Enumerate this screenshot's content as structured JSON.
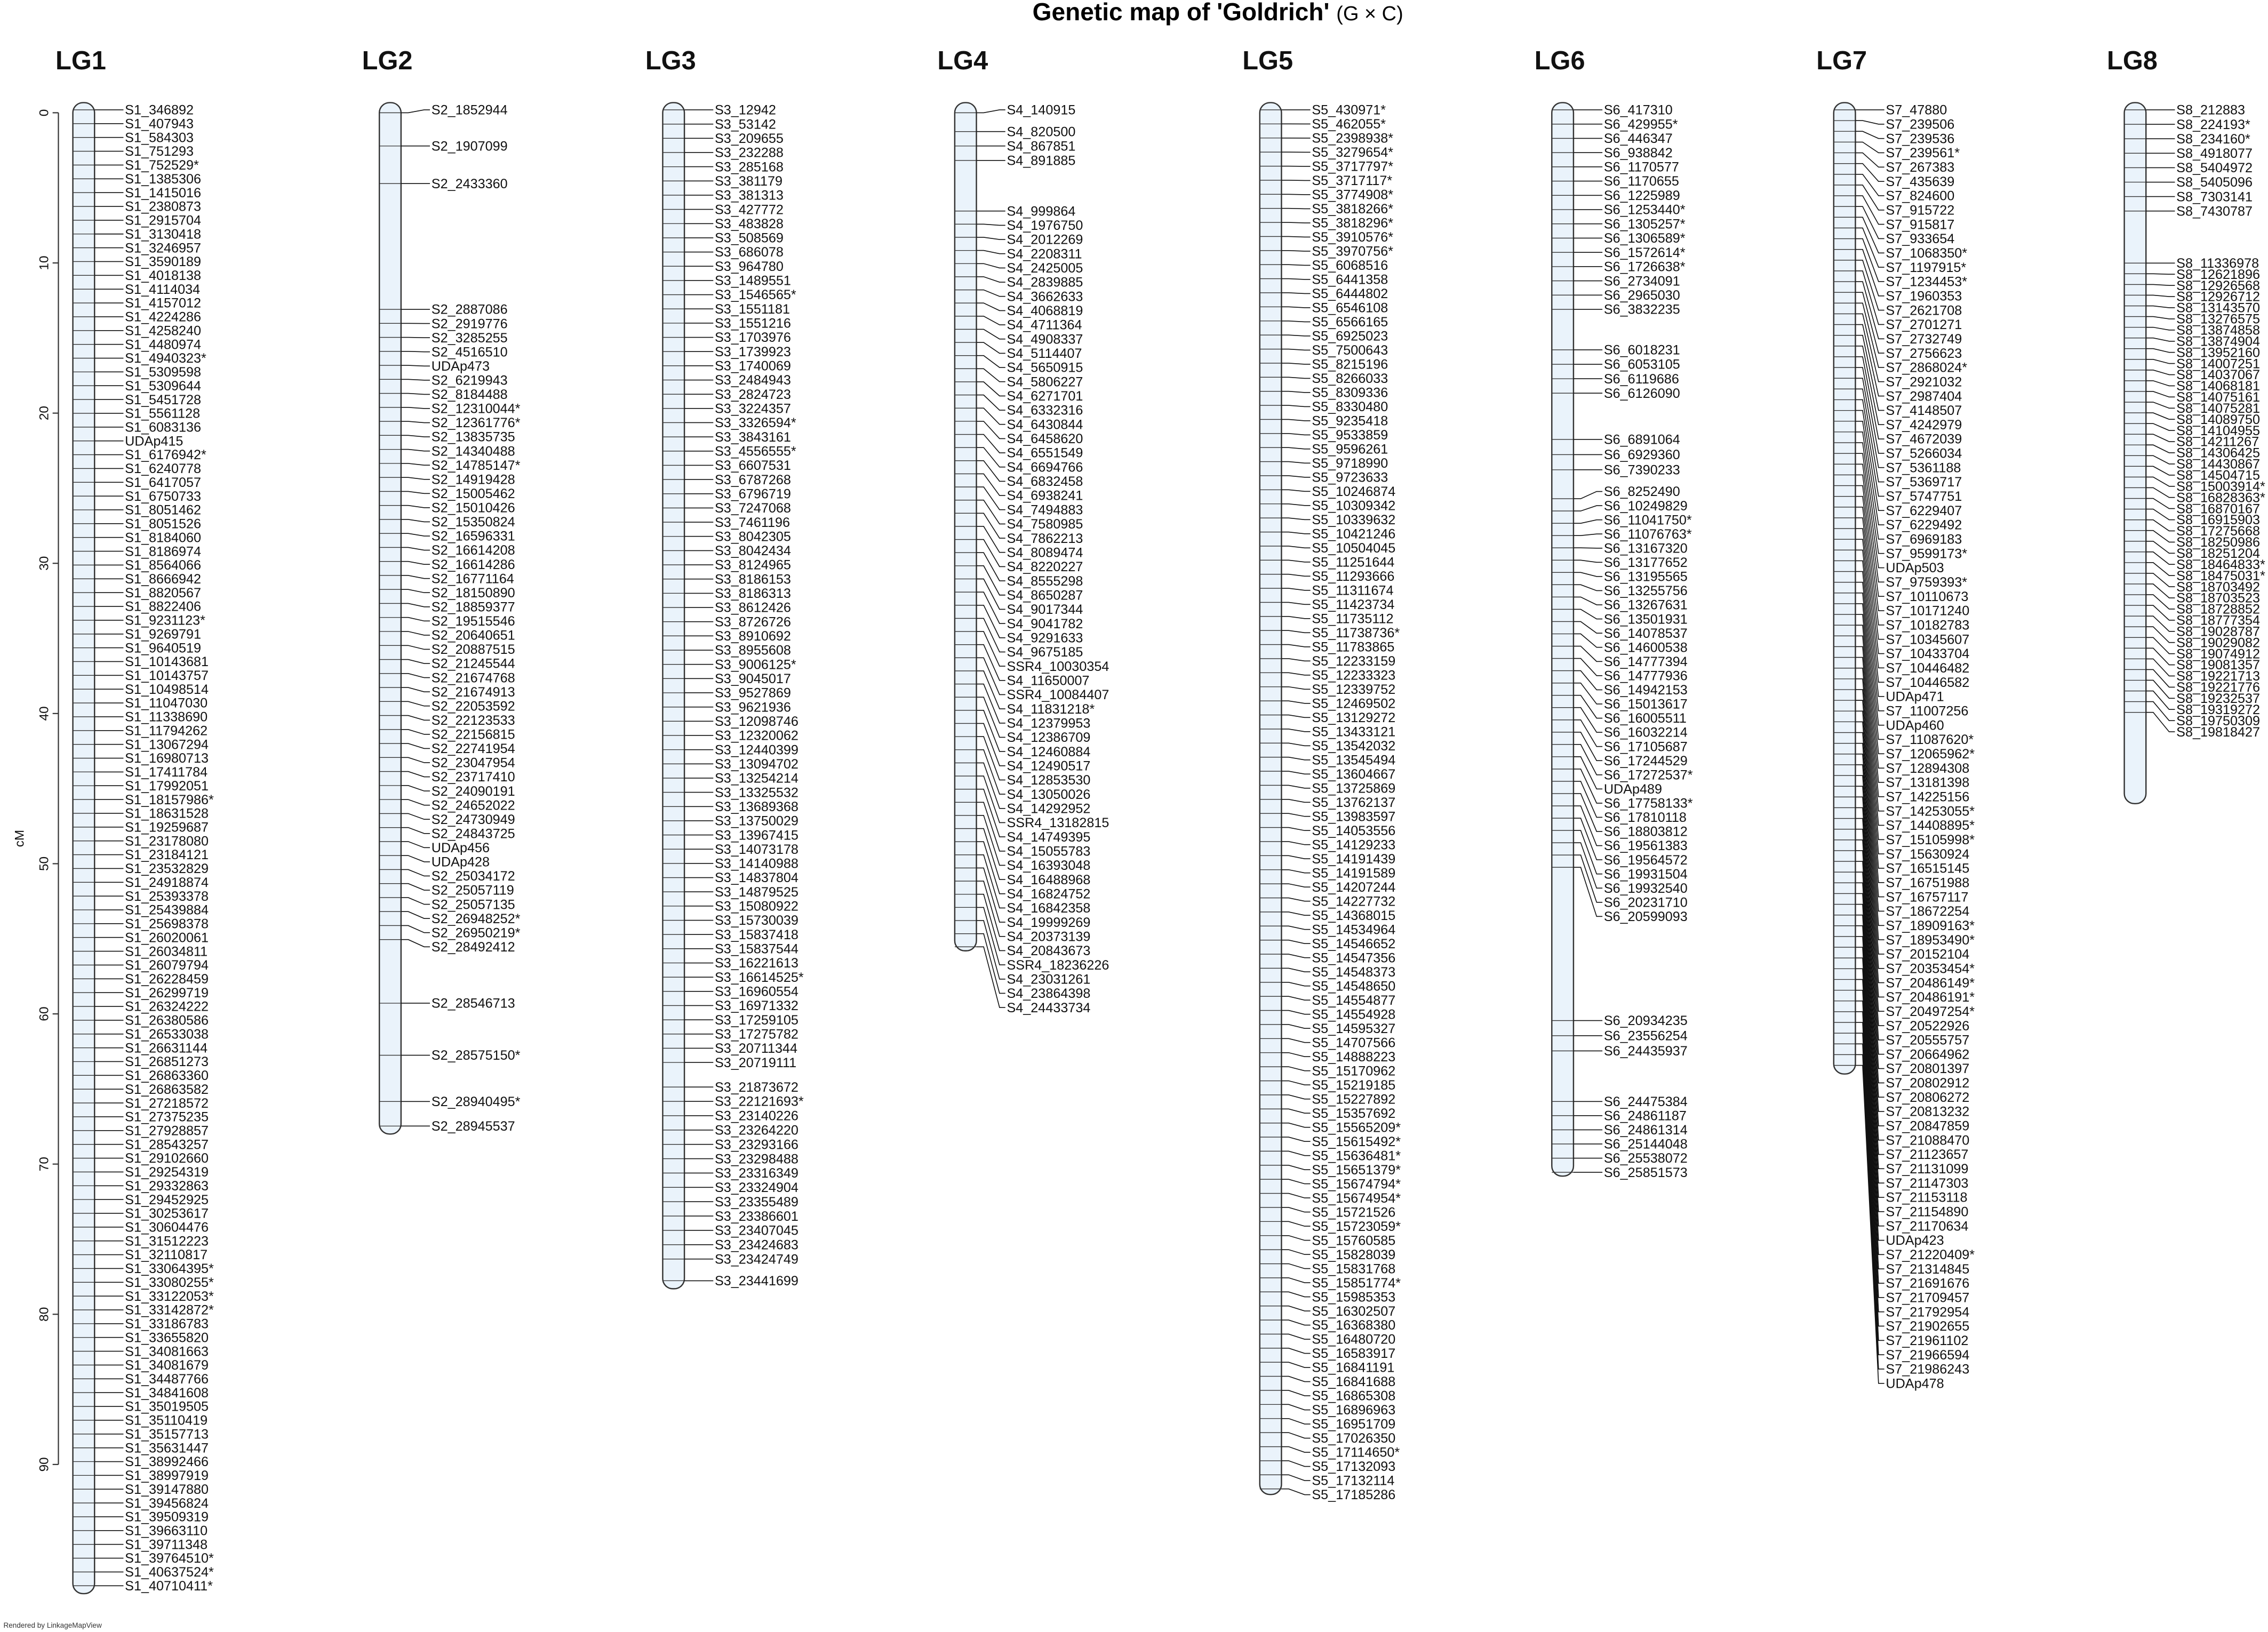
{
  "title": "Genetic map of 'Goldrich'",
  "title_suffix": "(G × C)",
  "y_axis_label": "cM",
  "y_ticks": [
    0,
    10,
    20,
    30,
    40,
    50,
    60,
    70,
    80,
    90
  ],
  "footer": "Rendered by LinkageMapView",
  "colors": {
    "chromosome_fill": "#eaf3fb",
    "outline": "#333333"
  },
  "linkage_groups": [
    {
      "name": "LG1",
      "length_cM": 98.6,
      "markers": [
        "S1_346892",
        "S1_407943",
        "S1_584303",
        "S1_751293",
        "S1_752529*",
        "S1_1385306",
        "S1_1415016",
        "S1_2380873",
        "S1_2915704",
        "S1_3130418",
        "S1_3246957",
        "S1_3590189",
        "S1_4018138",
        "S1_4114034",
        "S1_4157012",
        "S1_4224286",
        "S1_4258240",
        "S1_4480974",
        "S1_4940323*",
        "S1_5309598",
        "S1_5309644",
        "S1_5451728",
        "S1_5561128",
        "S1_6083136",
        "UDAp415",
        "S1_6176942*",
        "S1_6240778",
        "S1_6417057",
        "S1_6750733",
        "S1_8051462",
        "S1_8051526",
        "S1_8184060",
        "S1_8186974",
        "S1_8564066",
        "S1_8666942",
        "S1_8820567",
        "S1_8822406",
        "S1_9231123*",
        "S1_9269791",
        "S1_9640519",
        "S1_10143681",
        "S1_10143757",
        "S1_10498514",
        "S1_11047030",
        "S1_11338690",
        "S1_11794262",
        "S1_13067294",
        "S1_16980713",
        "S1_17411784",
        "S1_17992051",
        "S1_18157986*",
        "S1_18631528",
        "S1_19259687",
        "S1_23178080",
        "S1_23184121",
        "S1_23532829",
        "S1_24918874",
        "S1_25393378",
        "S1_25439884",
        "S1_25698378",
        "S1_26020061",
        "S1_26034811",
        "S1_26079794",
        "S1_26228459",
        "S1_26299719",
        "S1_26324222",
        "S1_26380586",
        "S1_26533038",
        "S1_26631144",
        "S1_26851273",
        "S1_26863360",
        "S1_26863582",
        "S1_27218572",
        "S1_27375235",
        "S1_27928857",
        "S1_28543257",
        "S1_29102660",
        "S1_29254319",
        "S1_29332863",
        "S1_29452925",
        "S1_30253617",
        "S1_30604476",
        "S1_31512223",
        "S1_32110817",
        "S1_33064395*",
        "S1_33080255*",
        "S1_33122053*",
        "S1_33142872*",
        "S1_33186783",
        "S1_33655820",
        "S1_34081663",
        "S1_34081679",
        "S1_34487766",
        "S1_34841608",
        "S1_35019505",
        "S1_35110419",
        "S1_35157713",
        "S1_35631447",
        "S1_38992466",
        "S1_38997919",
        "S1_39147880",
        "S1_39456824",
        "S1_39509319",
        "S1_39663110",
        "S1_39711348",
        "S1_39764510*",
        "S1_40637524*",
        "S1_40710411*"
      ]
    },
    {
      "name": "LG2",
      "length_cM": 68,
      "markers": [
        "S2_1852944",
        "S2_1907099",
        "S2_2433360",
        "S2_2887086",
        "S2_2919776",
        "S2_3285255",
        "S2_4516510",
        "UDAp473",
        "S2_6219943",
        "S2_8184488",
        "S2_12310044*",
        "S2_12361776*",
        "S2_13835735",
        "S2_14340488",
        "S2_14785147*",
        "S2_14919428",
        "S2_15005462",
        "S2_15010426",
        "S2_15350824",
        "S2_16596331",
        "S2_16614208",
        "S2_16614286",
        "S2_16771164",
        "S2_18150890",
        "S2_18859377",
        "S2_19515546",
        "S2_20640651",
        "S2_20887515",
        "S2_21245544",
        "S2_21674768",
        "S2_21674913",
        "S2_22053592",
        "S2_22123533",
        "S2_22156815",
        "S2_22741954",
        "S2_23047954",
        "S2_23717410",
        "S2_24090191",
        "S2_24652022",
        "S2_24730949",
        "S2_24843725",
        "UDAp456",
        "UDAp428",
        "S2_25034172",
        "S2_25057119",
        "S2_25057135",
        "S2_26948252*",
        "S2_26950219*",
        "S2_28492412",
        "S2_28546713",
        "S2_28575150*",
        "S2_28940495*",
        "S2_28945537"
      ]
    },
    {
      "name": "LG3",
      "length_cM": 78.3,
      "markers": [
        "S3_12942",
        "S3_53142",
        "S3_209655",
        "S3_232288",
        "S3_285168",
        "S3_381179",
        "S3_381313",
        "S3_427772",
        "S3_483828",
        "S3_508569",
        "S3_686078",
        "S3_964780",
        "S3_1489551",
        "S3_1546565*",
        "S3_1551181",
        "S3_1551216",
        "S3_1703976",
        "S3_1739923",
        "S3_1740069",
        "S3_2484943",
        "S3_2824723",
        "S3_3224357",
        "S3_3326594*",
        "S3_3843161",
        "S3_4556555*",
        "S3_6607531",
        "S3_6787268",
        "S3_6796719",
        "S3_7247068",
        "S3_7461196",
        "S3_8042305",
        "S3_8042434",
        "S3_8124965",
        "S3_8186153",
        "S3_8186313",
        "S3_8612426",
        "S3_8726726",
        "S3_8910692",
        "S3_8955608",
        "S3_9006125*",
        "S3_9045017",
        "S3_9527869",
        "S3_9621936",
        "S3_12098746",
        "S3_12320062",
        "S3_12440399",
        "S3_13094702",
        "S3_13254214",
        "S3_13325532",
        "S3_13689368",
        "S3_13750029",
        "S3_13967415",
        "S3_14073178",
        "S3_14140988",
        "S3_14837804",
        "S3_14879525",
        "S3_15080922",
        "S3_15730039",
        "S3_15837418",
        "S3_15837544",
        "S3_16221613",
        "S3_16614525*",
        "S3_16960554",
        "S3_16971332",
        "S3_17259105",
        "S3_17275782",
        "S3_20711344",
        "S3_20719111",
        "S3_21873672",
        "S3_22121693*",
        "S3_23140226",
        "S3_23264220",
        "S3_23293166",
        "S3_23298488",
        "S3_23316349",
        "S3_23324904",
        "S3_23355489",
        "S3_23386601",
        "S3_23407045",
        "S3_23424683",
        "S3_23424749",
        "S3_23441699"
      ]
    },
    {
      "name": "LG4",
      "length_cM": 55.8,
      "markers": [
        "S4_140915",
        "S4_820500",
        "S4_867851",
        "S4_891885",
        "S4_999864",
        "S4_1976750",
        "S4_2012269",
        "S4_2208311",
        "S4_2425005",
        "S4_2839885",
        "S4_3662633",
        "S4_4068819",
        "S4_4711364",
        "S4_4908337",
        "S4_5114407",
        "S4_5650915",
        "S4_5806227",
        "S4_6271701",
        "S4_6332316",
        "S4_6430844",
        "S4_6458620",
        "S4_6551549",
        "S4_6694766",
        "S4_6832458",
        "S4_6938241",
        "S4_7494883",
        "S4_7580985",
        "S4_7862213",
        "S4_8089474",
        "S4_8220227",
        "S4_8555298",
        "S4_8650287",
        "S4_9017344",
        "S4_9041782",
        "S4_9291633",
        "S4_9675185",
        "SSR4_10030354",
        "S4_11650007",
        "SSR4_10084407",
        "S4_11831218*",
        "S4_12379953",
        "S4_12386709",
        "S4_12460884",
        "S4_12490517",
        "S4_12853530",
        "S4_13050026",
        "S4_14292952",
        "SSR4_13182815",
        "S4_14749395",
        "S4_15055783",
        "S4_16393048",
        "S4_16488968",
        "S4_16824752",
        "S4_16842358",
        "S4_19999269",
        "S4_20373139",
        "S4_20843673",
        "SSR4_18236226",
        "S4_23031261",
        "S4_23864398",
        "S4_24433734"
      ]
    },
    {
      "name": "LG5",
      "length_cM": 92,
      "markers": [
        "S5_430971*",
        "S5_462055*",
        "S5_2398938*",
        "S5_3279654*",
        "S5_3717797*",
        "S5_3717117*",
        "S5_3774908*",
        "S5_3818266*",
        "S5_3818296*",
        "S5_3910576*",
        "S5_3970756*",
        "S5_6068516",
        "S5_6441358",
        "S5_6444802",
        "S5_6546108",
        "S5_6566165",
        "S5_6925023",
        "S5_7500643",
        "S5_8215196",
        "S5_8266033",
        "S5_8309336",
        "S5_8330480",
        "S5_9235418",
        "S5_9533859",
        "S5_9596261",
        "S5_9718990",
        "S5_9723633",
        "S5_10246874",
        "S5_10309342",
        "S5_10339632",
        "S5_10421246",
        "S5_10504045",
        "S5_11251644",
        "S5_11293666",
        "S5_11311674",
        "S5_11423734",
        "S5_11735112",
        "S5_11738736*",
        "S5_11783865",
        "S5_12233159",
        "S5_12233323",
        "S5_12339752",
        "S5_12469502",
        "S5_13129272",
        "S5_13433121",
        "S5_13542032",
        "S5_13545494",
        "S5_13604667",
        "S5_13725869",
        "S5_13762137",
        "S5_13983597",
        "S5_14053556",
        "S5_14129233",
        "S5_14191439",
        "S5_14191589",
        "S5_14207244",
        "S5_14227732",
        "S5_14368015",
        "S5_14534964",
        "S5_14546652",
        "S5_14547356",
        "S5_14548373",
        "S5_14548650",
        "S5_14554877",
        "S5_14554928",
        "S5_14595327",
        "S5_14707566",
        "S5_14888223",
        "S5_15170962",
        "S5_15219185",
        "S5_15227892",
        "S5_15357692",
        "S5_15565209*",
        "S5_15615492*",
        "S5_15636481*",
        "S5_15651379*",
        "S5_15674794*",
        "S5_15674954*",
        "S5_15721526",
        "S5_15723059*",
        "S5_15760585",
        "S5_15828039",
        "S5_15831768",
        "S5_15851774*",
        "S5_15985353",
        "S5_16302507",
        "S5_16368380",
        "S5_16480720",
        "S5_16583917",
        "S5_16841191",
        "S5_16841688",
        "S5_16865308",
        "S5_16896963",
        "S5_16951709",
        "S5_17026350",
        "S5_17114650*",
        "S5_17132093",
        "S5_17132114",
        "S5_17185286"
      ]
    },
    {
      "name": "LG6",
      "length_cM": 70.8,
      "markers": [
        "S6_417310",
        "S6_429955*",
        "S6_446347",
        "S6_938842",
        "S6_1170577",
        "S6_1170655",
        "S6_1225989",
        "S6_1253440*",
        "S6_1305257*",
        "S6_1306589*",
        "S6_1572614*",
        "S6_1726638*",
        "S6_2734091",
        "S6_2965030",
        "S6_3832235",
        "S6_6018231",
        "S6_6053105",
        "S6_6119686",
        "S6_6126090",
        "S6_6891064",
        "S6_6929360",
        "S6_7390233",
        "S6_8252490",
        "S6_10249829",
        "S6_11041750*",
        "S6_11076763*",
        "S6_13167320",
        "S6_13177652",
        "S6_13195565",
        "S6_13255756",
        "S6_13267631",
        "S6_13501931",
        "S6_14078537",
        "S6_14600538",
        "S6_14777394",
        "S6_14777936",
        "S6_14942153",
        "S6_15013617",
        "S6_16005511",
        "S6_16032214",
        "S6_17105687",
        "S6_17244529",
        "S6_17272537*",
        "UDAp489",
        "S6_17758133*",
        "S6_17810118",
        "S6_18803812",
        "S6_19561383",
        "S6_19564572",
        "S6_19931504",
        "S6_19932540",
        "S6_20231710",
        "S6_20599093",
        "S6_20934235",
        "S6_23556254",
        "S6_24435937",
        "S6_24475384",
        "S6_24861187",
        "S6_24861314",
        "S6_25144048",
        "S6_25538072",
        "S6_25851573"
      ]
    },
    {
      "name": "LG7",
      "length_cM": 64,
      "markers": [
        "S7_47880",
        "S7_239506",
        "S7_239536",
        "S7_239561*",
        "S7_267383",
        "S7_435639",
        "S7_824600",
        "S7_915722",
        "S7_915817",
        "S7_933654",
        "S7_1068350*",
        "S7_1197915*",
        "S7_1234453*",
        "S7_1960353",
        "S7_2621708",
        "S7_2701271",
        "S7_2732749",
        "S7_2756623",
        "S7_2868024*",
        "S7_2921032",
        "S7_2987404",
        "S7_4148507",
        "S7_4242979",
        "S7_4672039",
        "S7_5266034",
        "S7_5361188",
        "S7_5369717",
        "S7_5747751",
        "S7_6229407",
        "S7_6229492",
        "S7_6969183",
        "S7_9599173*",
        "UDAp503",
        "S7_9759393*",
        "S7_10110673",
        "S7_10171240",
        "S7_10182783",
        "S7_10345607",
        "S7_10433704",
        "S7_10446482",
        "S7_10446582",
        "UDAp471",
        "S7_11007256",
        "UDAp460",
        "S7_11087620*",
        "S7_12065962*",
        "S7_12894308",
        "S7_13181398",
        "S7_14225156",
        "S7_14253055*",
        "S7_14408895*",
        "S7_15105998*",
        "S7_15630924",
        "S7_16515145",
        "S7_16751988",
        "S7_16757117",
        "S7_18672254",
        "S7_18909163*",
        "S7_18953490*",
        "S7_20152104",
        "S7_20353454*",
        "S7_20486149*",
        "S7_20486191*",
        "S7_20497254*",
        "S7_20522926",
        "S7_20555757",
        "S7_20664962",
        "S7_20801397",
        "S7_20802912",
        "S7_20806272",
        "S7_20813232",
        "S7_20847859",
        "S7_21088470",
        "S7_21123657",
        "S7_21131099",
        "S7_21147303",
        "S7_21153118",
        "S7_21154890",
        "S7_21170634",
        "UDAp423",
        "S7_21220409*",
        "S7_21314845",
        "S7_21691676",
        "S7_21709457",
        "S7_21792954",
        "S7_21902655",
        "S7_21961102",
        "S7_21966594",
        "S7_21986243",
        "UDAp478"
      ]
    },
    {
      "name": "LG8",
      "length_cM": 46,
      "markers": [
        "S8_212883",
        "S8_224193*",
        "S8_234160*",
        "S8_4918077",
        "S8_5404972",
        "S8_5405096",
        "S8_7303141",
        "S8_7430787",
        "S8_11336978",
        "S8_12621896",
        "S8_12926568",
        "S8_12926712",
        "S8_13143570",
        "S8_13276575",
        "S8_13874858",
        "S8_13874904",
        "S8_13952160",
        "S8_14007251",
        "S8_14037067",
        "S8_14068181",
        "S8_14075161",
        "S8_14075281",
        "S8_14089750",
        "S8_14104955",
        "S8_14211267",
        "S8_14306425",
        "S8_14430867",
        "S8_14504715",
        "S8_15003914*",
        "S8_16828363*",
        "S8_16870167",
        "S8_16915903",
        "S8_17275668",
        "S8_18250986",
        "S8_18251204",
        "S8_18464833*",
        "S8_18475031*",
        "S8_18703492",
        "S8_18703523",
        "S8_18728852",
        "S8_18777354",
        "S8_19028787",
        "S8_19029082",
        "S8_19074912",
        "S8_19081357",
        "S8_19221713",
        "S8_19221776",
        "S8_19232537",
        "S8_19319272",
        "S8_19750309",
        "S8_19818427"
      ]
    }
  ]
}
